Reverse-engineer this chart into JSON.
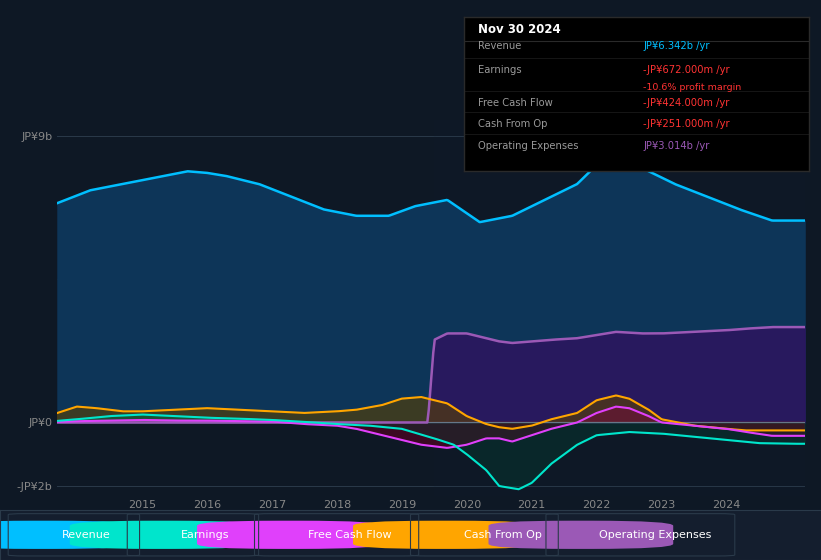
{
  "bg_color": "#0e1825",
  "plot_bg_upper": "#0e2035",
  "plot_bg_lower": "#0e1825",
  "y_label_top": "JP¥9b",
  "y_label_zero": "JP¥0",
  "y_label_bottom": "-JP¥2b",
  "x_ticks": [
    2015,
    2016,
    2017,
    2018,
    2019,
    2020,
    2021,
    2022,
    2023,
    2024
  ],
  "y_max": 9500000000,
  "y_min": -2300000000,
  "y_zero": 0,
  "y_nine": 9000000000,
  "y_neg_two": -2000000000,
  "colors": {
    "revenue": "#00bfff",
    "revenue_fill": "#0e4070",
    "earnings": "#00e5cc",
    "earnings_fill": "#00e5cc",
    "free_cash_flow": "#e040fb",
    "free_cash_flow_fill": "#8b0030",
    "cash_from_op": "#ffa500",
    "cash_from_op_fill": "#8b6000",
    "operating_expenses": "#9b59b6",
    "operating_expenses_fill": "#3d1a6e"
  },
  "tooltip": {
    "date": "Nov 30 2024",
    "revenue_label": "Revenue",
    "revenue_value": "JP¥6.342b /yr",
    "revenue_color": "#00bfff",
    "earnings_label": "Earnings",
    "earnings_value": "-JP¥672.000m /yr",
    "earnings_color": "#ff3333",
    "margin_value": "-10.6% profit margin",
    "margin_color": "#ff3333",
    "fcf_label": "Free Cash Flow",
    "fcf_value": "-JP¥424.000m /yr",
    "fcf_color": "#ff3333",
    "cashop_label": "Cash From Op",
    "cashop_value": "-JP¥251.000m /yr",
    "cashop_color": "#ff3333",
    "opex_label": "Operating Expenses",
    "opex_value": "JP¥3.014b /yr",
    "opex_color": "#9b59b6"
  },
  "legend": [
    {
      "label": "Revenue",
      "color": "#00bfff"
    },
    {
      "label": "Earnings",
      "color": "#00e5cc"
    },
    {
      "label": "Free Cash Flow",
      "color": "#e040fb"
    },
    {
      "label": "Cash From Op",
      "color": "#ffa500"
    },
    {
      "label": "Operating Expenses",
      "color": "#9b59b6"
    }
  ]
}
